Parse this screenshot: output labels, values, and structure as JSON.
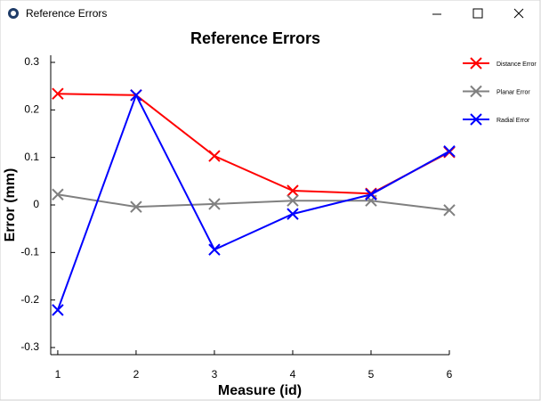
{
  "window": {
    "title": "Reference Errors"
  },
  "chart_data": {
    "type": "line",
    "title": "Reference Errors",
    "x_label": "Measure (id)",
    "y_label": "Error (mm)",
    "x": [
      1,
      2,
      3,
      4,
      5,
      6
    ],
    "series": [
      {
        "name": "Distance Error",
        "color": "#ff0000",
        "values": [
          0.234,
          0.231,
          0.103,
          0.03,
          0.024,
          0.111
        ]
      },
      {
        "name": "Planar Error",
        "color": "#808080",
        "values": [
          0.022,
          -0.004,
          0.002,
          0.009,
          0.009,
          -0.011
        ]
      },
      {
        "name": "Radial Error",
        "color": "#0000ff",
        "values": [
          -0.221,
          0.231,
          -0.094,
          -0.019,
          0.022,
          0.113
        ]
      }
    ],
    "xlim": [
      0.91,
      6
    ],
    "ylim": [
      -0.315,
      0.315
    ],
    "xticks": [
      1,
      2,
      3,
      4,
      5,
      6
    ],
    "yticks": [
      0.3,
      0.2,
      0.1,
      0,
      -0.1,
      -0.2,
      -0.3
    ],
    "legend": "right"
  }
}
